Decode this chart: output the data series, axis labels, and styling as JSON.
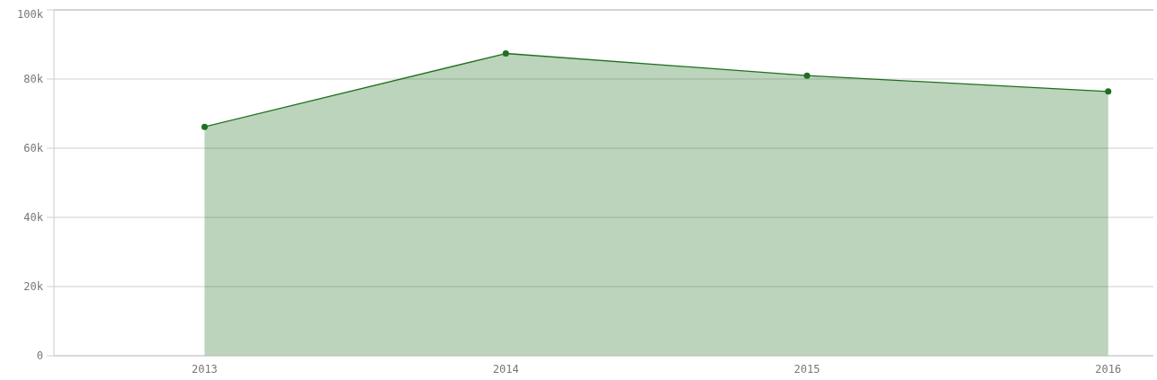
{
  "chart_data": {
    "type": "area",
    "x": [
      2013,
      2014,
      2015,
      2016
    ],
    "series": [
      {
        "color": "#1f6f1f",
        "values": [
          66200,
          87400,
          81000,
          76400
        ]
      }
    ],
    "xlim": [
      2012.5,
      2016.15
    ],
    "xticks": [
      2013,
      2014,
      2015,
      2016
    ],
    "ylim": [
      0,
      100000
    ],
    "yticks": [
      {
        "value": 0,
        "label": "0"
      },
      {
        "value": 20000,
        "label": "20k"
      },
      {
        "value": 40000,
        "label": "40k"
      },
      {
        "value": 60000,
        "label": "60k"
      },
      {
        "value": 80000,
        "label": "80k"
      },
      {
        "value": 100000,
        "label": "100k"
      }
    ],
    "grid": "y",
    "marker": "circle"
  }
}
